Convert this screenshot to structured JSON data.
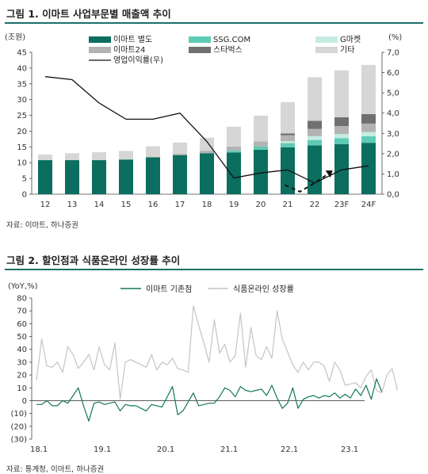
{
  "figure1": {
    "title": "그림 1. 이마트 사업부문별 매출액 추이",
    "source": "자료: 이마트, 하나증권",
    "chart_data": {
      "type": "bar",
      "stacked": true,
      "left_unit": "(조원)",
      "right_unit": "(%)",
      "categories": [
        "12",
        "13",
        "14",
        "15",
        "16",
        "17",
        "18",
        "19",
        "20",
        "21",
        "22",
        "23F",
        "24F"
      ],
      "left_ylim": [
        0,
        45
      ],
      "left_ticks": [
        "0",
        "5",
        "10",
        "15",
        "20",
        "25",
        "30",
        "35",
        "40",
        "45"
      ],
      "right_ylim": [
        0,
        7
      ],
      "right_ticks": [
        "0,0",
        "1,0",
        "2,0",
        "3,0",
        "4,0",
        "5,0",
        "6,0",
        "7,0"
      ],
      "series": [
        {
          "name": "이마트 별도",
          "color": "#0b6e5f",
          "values": [
            10.8,
            10.8,
            10.8,
            11.0,
            11.7,
            12.4,
            13.0,
            13.2,
            14.1,
            14.9,
            15.5,
            15.9,
            16.3
          ]
        },
        {
          "name": "SSG.COM",
          "color": "#5ecbb5",
          "values": [
            0,
            0,
            0,
            0,
            0,
            0,
            0,
            0.6,
            1.0,
            1.3,
            1.7,
            1.9,
            2.1
          ]
        },
        {
          "name": "G마켓",
          "color": "#c5ece3",
          "values": [
            0,
            0,
            0,
            0,
            0,
            0,
            0,
            0,
            0,
            0.6,
            1.2,
            1.3,
            1.3
          ]
        },
        {
          "name": "이마트24",
          "color": "#b3b3b3",
          "values": [
            0,
            0,
            0,
            0,
            0,
            0.4,
            0.8,
            1.3,
            1.6,
            1.9,
            2.3,
            2.5,
            2.7
          ]
        },
        {
          "name": "스타벅스",
          "color": "#707070",
          "values": [
            0,
            0,
            0,
            0,
            0,
            0,
            0,
            0,
            0,
            0.6,
            2.6,
            2.8,
            3.0
          ]
        },
        {
          "name": "기타",
          "color": "#d6d6d6",
          "values": [
            1.8,
            2.2,
            2.5,
            2.7,
            3.5,
            3.6,
            4.1,
            6.3,
            8.2,
            9.9,
            13.8,
            14.9,
            15.6
          ]
        }
      ],
      "line": {
        "name": "영업이익률(우)",
        "color": "#111111",
        "values": [
          5.8,
          5.65,
          4.5,
          3.7,
          3.7,
          4.0,
          2.6,
          0.8,
          1.05,
          1.2,
          0.55,
          1.2,
          1.4
        ]
      },
      "dashed_arrow": [
        0.45,
        0.12,
        0.55,
        1.05
      ]
    }
  },
  "figure2": {
    "title": "그림 2. 할인점과 식품온라인 성장률 추이",
    "source": "자료: 통계청, 이마트, 하나증권",
    "chart_data": {
      "type": "line",
      "unit": "(YoY,%)",
      "ylim": [
        -30,
        80
      ],
      "y_ticks": [
        "80",
        "70",
        "60",
        "50",
        "40",
        "30",
        "20",
        "10",
        "0",
        "(10)",
        "(20)",
        "(30)"
      ],
      "x_ticks": [
        "18.1",
        "19.1",
        "20.1",
        "21.1",
        "22.1",
        "23.1"
      ],
      "series": [
        {
          "name": "이마트 기존점",
          "color": "#15765e",
          "values": [
            -3,
            -3,
            0,
            -4,
            -4,
            0,
            -2,
            4,
            10,
            -4,
            -16,
            -2,
            -1,
            -3,
            -2,
            -1,
            -8,
            -3,
            -4,
            -4,
            -6,
            -8,
            -3,
            -4,
            -5,
            3,
            11,
            -11,
            -8,
            -1,
            6,
            -4,
            -3,
            -2,
            -2,
            3,
            10,
            8,
            3,
            11,
            8,
            7,
            8,
            9,
            4,
            12,
            2,
            -6,
            -2,
            10,
            -6,
            1,
            3,
            4,
            2,
            4,
            3,
            6,
            2,
            5,
            2,
            9,
            4,
            12,
            1,
            17,
            7
          ]
        },
        {
          "name": "식품온라인 성장률",
          "color": "#c4c4c4",
          "values": [
            16,
            48,
            27,
            26,
            30,
            22,
            42,
            36,
            25,
            30,
            36,
            24,
            42,
            28,
            24,
            45,
            1,
            30,
            32,
            30,
            28,
            26,
            36,
            24,
            30,
            28,
            33,
            25,
            24,
            22,
            74,
            59,
            45,
            30,
            63,
            37,
            44,
            30,
            35,
            68,
            26,
            57,
            35,
            32,
            42,
            33,
            70,
            48,
            38,
            28,
            22,
            30,
            24,
            30,
            30,
            27,
            15,
            30,
            24,
            12,
            13,
            14,
            10,
            19,
            24,
            8,
            6,
            20,
            25,
            8
          ]
        }
      ]
    }
  }
}
